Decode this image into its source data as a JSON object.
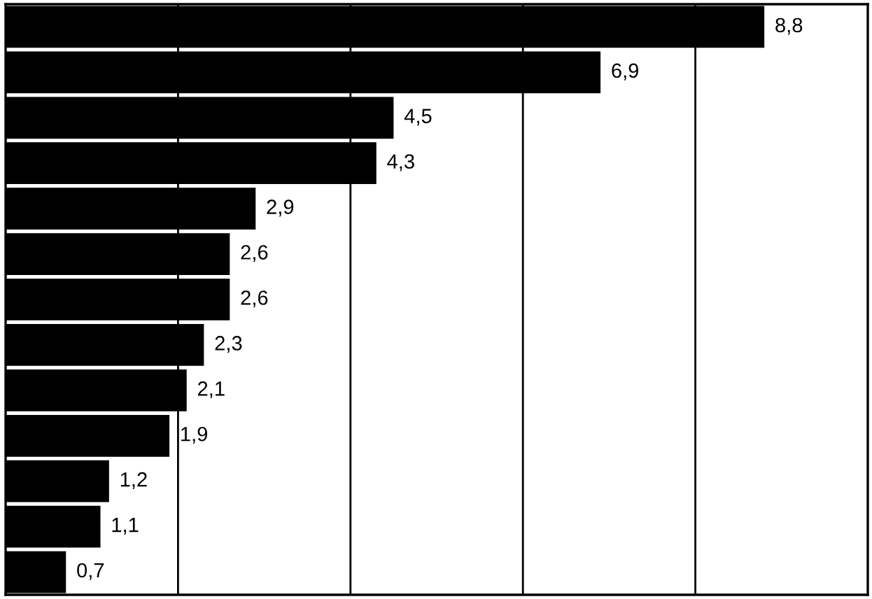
{
  "chart_data": {
    "type": "bar",
    "orientation": "horizontal",
    "categories": [
      null,
      null,
      null,
      null,
      null,
      null,
      null,
      null,
      null,
      null,
      null,
      null,
      null
    ],
    "values": [
      8.8,
      6.9,
      4.5,
      4.3,
      2.9,
      2.6,
      2.6,
      2.3,
      2.1,
      1.9,
      1.2,
      1.1,
      0.7
    ],
    "value_labels": [
      "8,8",
      "6,9",
      "4,5",
      "4,3",
      "2,9",
      "2,6",
      "2,6",
      "2,3",
      "2,1",
      "1,9",
      "1,2",
      "1,1",
      "0,7"
    ],
    "color": "#000000",
    "xlim": [
      0,
      10
    ],
    "xticks": [
      {
        "value": 2,
        "label": null
      },
      {
        "value": 4,
        "label": null
      },
      {
        "value": 6,
        "label": null
      },
      {
        "value": 8,
        "label": null
      }
    ],
    "grid": "x"
  }
}
